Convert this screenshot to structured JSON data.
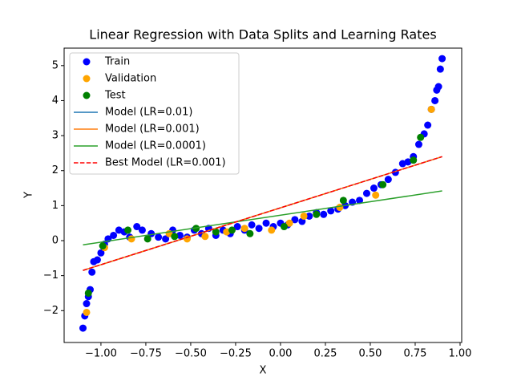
{
  "chart_data": {
    "type": "scatter",
    "title": "Linear Regression with Data Splits and Learning Rates",
    "xlabel": "X",
    "ylabel": "Y",
    "xlim": [
      -1.205,
      1.009
    ],
    "ylim": [
      -2.91,
      5.5
    ],
    "xticks": [
      {
        "value": -1,
        "label": "−1.00"
      },
      {
        "value": -0.75,
        "label": "−0.75"
      },
      {
        "value": -0.5,
        "label": "−0.50"
      },
      {
        "value": -0.25,
        "label": "−0.25"
      },
      {
        "value": 0,
        "label": "0.00"
      },
      {
        "value": 0.25,
        "label": "0.25"
      },
      {
        "value": 0.5,
        "label": "0.50"
      },
      {
        "value": 0.75,
        "label": "0.75"
      },
      {
        "value": 1,
        "label": "1.00"
      }
    ],
    "yticks": [
      {
        "value": -2,
        "label": "−2"
      },
      {
        "value": -1,
        "label": "−1"
      },
      0,
      1,
      2,
      3,
      4,
      5
    ],
    "legend": "upper left",
    "series": [
      {
        "name": "Train",
        "kind": "scatter",
        "color": "#0000ff",
        "x": [
          -1.1,
          -1.09,
          -1.08,
          -1.07,
          -1.06,
          -1.05,
          -1.04,
          -1.02,
          -1.0,
          -0.98,
          -0.96,
          -0.93,
          -0.9,
          -0.87,
          -0.84,
          -0.8,
          -0.77,
          -0.72,
          -0.68,
          -0.64,
          -0.6,
          -0.56,
          -0.52,
          -0.48,
          -0.44,
          -0.4,
          -0.36,
          -0.32,
          -0.28,
          -0.24,
          -0.2,
          -0.16,
          -0.12,
          -0.08,
          -0.04,
          0.0,
          0.04,
          0.08,
          0.12,
          0.16,
          0.2,
          0.24,
          0.28,
          0.32,
          0.36,
          0.4,
          0.44,
          0.48,
          0.52,
          0.56,
          0.6,
          0.64,
          0.68,
          0.71,
          0.74,
          0.77,
          0.8,
          0.82,
          0.84,
          0.86,
          0.87,
          0.88,
          0.89,
          0.9
        ],
        "y": [
          -2.5,
          -2.15,
          -1.8,
          -1.6,
          -1.4,
          -0.9,
          -0.6,
          -0.55,
          -0.35,
          -0.1,
          0.05,
          0.15,
          0.3,
          0.25,
          0.1,
          0.4,
          0.3,
          0.2,
          0.1,
          0.05,
          0.3,
          0.15,
          0.1,
          0.3,
          0.2,
          0.35,
          0.15,
          0.3,
          0.2,
          0.4,
          0.3,
          0.45,
          0.35,
          0.5,
          0.4,
          0.5,
          0.45,
          0.6,
          0.55,
          0.7,
          0.8,
          0.75,
          0.85,
          0.9,
          1.0,
          1.1,
          1.15,
          1.35,
          1.5,
          1.6,
          1.75,
          1.95,
          2.2,
          2.25,
          2.4,
          2.75,
          3.05,
          3.3,
          3.75,
          4.0,
          4.3,
          4.4,
          4.9,
          5.2
        ]
      },
      {
        "name": "Validation",
        "kind": "scatter",
        "color": "#ffa500",
        "x": [
          -1.08,
          -0.98,
          -0.83,
          -0.62,
          -0.52,
          -0.42,
          -0.3,
          -0.2,
          -0.05,
          0.05,
          0.13,
          0.33,
          0.53,
          0.84
        ],
        "y": [
          -2.05,
          -0.2,
          0.05,
          0.2,
          0.05,
          0.12,
          0.25,
          0.35,
          0.3,
          0.5,
          0.7,
          0.95,
          1.3,
          3.75
        ]
      },
      {
        "name": "Test",
        "kind": "scatter",
        "color": "#008000",
        "x": [
          -1.07,
          -0.99,
          -0.85,
          -0.74,
          -0.59,
          -0.47,
          -0.36,
          -0.27,
          -0.17,
          0.02,
          0.2,
          0.35,
          0.57,
          0.74,
          0.78
        ],
        "y": [
          -1.5,
          -0.15,
          0.3,
          0.05,
          0.12,
          0.35,
          0.25,
          0.3,
          0.2,
          0.4,
          0.75,
          1.15,
          1.6,
          2.3,
          2.95
        ]
      },
      {
        "name": "Model (LR=0.01)",
        "kind": "line",
        "color": "#1f77b4",
        "linestyle": "solid",
        "x": [
          -1.1,
          0.9
        ],
        "y": [
          -0.85,
          2.4
        ]
      },
      {
        "name": "Model (LR=0.001)",
        "kind": "line",
        "color": "#ff7f0e",
        "linestyle": "solid",
        "x": [
          -1.1,
          0.9
        ],
        "y": [
          -0.85,
          2.4
        ]
      },
      {
        "name": "Model (LR=0.0001)",
        "kind": "line",
        "color": "#2ca02c",
        "linestyle": "solid",
        "x": [
          -1.1,
          0.9
        ],
        "y": [
          -0.12,
          1.42
        ]
      },
      {
        "name": "Best Model (LR=0.001)",
        "kind": "line",
        "color": "#ff0000",
        "linestyle": "dashed",
        "x": [
          -1.1,
          0.9
        ],
        "y": [
          -0.85,
          2.4
        ]
      }
    ]
  }
}
